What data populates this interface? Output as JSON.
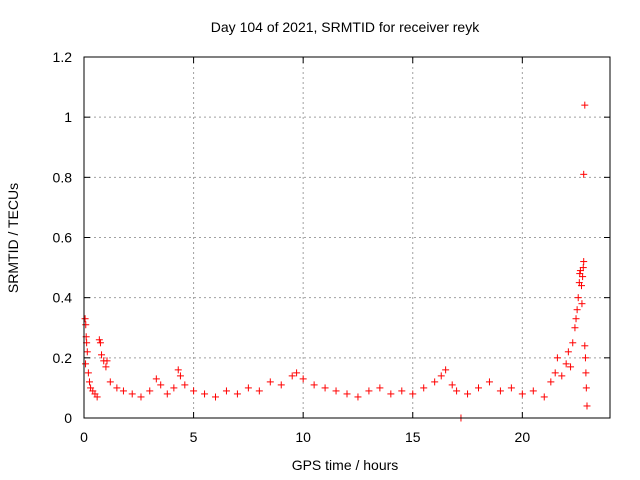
{
  "chart_data": {
    "type": "scatter",
    "title": "Day 104 of 2021, SRMTID for receiver reyk",
    "xlabel": "GPS time / hours",
    "ylabel": "SRMTID / TECUs",
    "xlim": [
      0,
      24
    ],
    "ylim": [
      0,
      1.2
    ],
    "xticks": [
      0,
      5,
      10,
      15,
      20
    ],
    "xtick_labels": [
      "0",
      "5",
      "10",
      "15",
      "20"
    ],
    "yticks": [
      0,
      0.2,
      0.4,
      0.6,
      0.8,
      1.0,
      1.2
    ],
    "ytick_labels": [
      "0",
      "0.2",
      "0.4",
      "0.6",
      "0.8",
      "1",
      "1.2"
    ],
    "grid": true,
    "marker": "plus",
    "color": "#ff0000",
    "points": [
      [
        0.05,
        0.33
      ],
      [
        0.08,
        0.31
      ],
      [
        0.1,
        0.27
      ],
      [
        0.12,
        0.25
      ],
      [
        0.15,
        0.22
      ],
      [
        0.07,
        0.18
      ],
      [
        0.2,
        0.15
      ],
      [
        0.25,
        0.12
      ],
      [
        0.3,
        0.1
      ],
      [
        0.4,
        0.09
      ],
      [
        0.5,
        0.08
      ],
      [
        0.6,
        0.07
      ],
      [
        0.7,
        0.26
      ],
      [
        0.75,
        0.25
      ],
      [
        0.8,
        0.21
      ],
      [
        0.9,
        0.19
      ],
      [
        1.0,
        0.17
      ],
      [
        1.05,
        0.19
      ],
      [
        1.2,
        0.12
      ],
      [
        1.5,
        0.1
      ],
      [
        1.8,
        0.09
      ],
      [
        2.2,
        0.08
      ],
      [
        2.6,
        0.07
      ],
      [
        3.0,
        0.09
      ],
      [
        3.3,
        0.13
      ],
      [
        3.5,
        0.11
      ],
      [
        3.8,
        0.08
      ],
      [
        4.1,
        0.1
      ],
      [
        4.3,
        0.16
      ],
      [
        4.4,
        0.14
      ],
      [
        4.6,
        0.11
      ],
      [
        5.0,
        0.09
      ],
      [
        5.5,
        0.08
      ],
      [
        6.0,
        0.07
      ],
      [
        6.5,
        0.09
      ],
      [
        7.0,
        0.08
      ],
      [
        7.5,
        0.1
      ],
      [
        8.0,
        0.09
      ],
      [
        8.5,
        0.12
      ],
      [
        9.0,
        0.11
      ],
      [
        9.5,
        0.14
      ],
      [
        9.7,
        0.15
      ],
      [
        10.0,
        0.13
      ],
      [
        10.5,
        0.11
      ],
      [
        11.0,
        0.1
      ],
      [
        11.5,
        0.09
      ],
      [
        12.0,
        0.08
      ],
      [
        12.5,
        0.07
      ],
      [
        13.0,
        0.09
      ],
      [
        13.5,
        0.1
      ],
      [
        14.0,
        0.08
      ],
      [
        14.5,
        0.09
      ],
      [
        15.0,
        0.08
      ],
      [
        15.5,
        0.1
      ],
      [
        16.0,
        0.12
      ],
      [
        16.3,
        0.14
      ],
      [
        16.5,
        0.16
      ],
      [
        16.8,
        0.11
      ],
      [
        17.0,
        0.09
      ],
      [
        17.2,
        0.0
      ],
      [
        17.5,
        0.08
      ],
      [
        18.0,
        0.1
      ],
      [
        18.5,
        0.12
      ],
      [
        19.0,
        0.09
      ],
      [
        19.5,
        0.1
      ],
      [
        20.0,
        0.08
      ],
      [
        20.5,
        0.09
      ],
      [
        21.0,
        0.07
      ],
      [
        21.3,
        0.12
      ],
      [
        21.5,
        0.15
      ],
      [
        21.6,
        0.2
      ],
      [
        21.8,
        0.14
      ],
      [
        22.0,
        0.18
      ],
      [
        22.1,
        0.22
      ],
      [
        22.2,
        0.17
      ],
      [
        22.3,
        0.25
      ],
      [
        22.4,
        0.3
      ],
      [
        22.45,
        0.33
      ],
      [
        22.5,
        0.36
      ],
      [
        22.55,
        0.4
      ],
      [
        22.6,
        0.45
      ],
      [
        22.62,
        0.48
      ],
      [
        22.65,
        0.49
      ],
      [
        22.7,
        0.44
      ],
      [
        22.72,
        0.38
      ],
      [
        22.75,
        0.47
      ],
      [
        22.78,
        0.5
      ],
      [
        22.8,
        0.52
      ],
      [
        22.85,
        0.24
      ],
      [
        22.88,
        0.2
      ],
      [
        22.9,
        0.15
      ],
      [
        22.92,
        0.1
      ],
      [
        22.95,
        0.04
      ],
      [
        22.8,
        0.81
      ],
      [
        22.85,
        1.04
      ]
    ]
  }
}
